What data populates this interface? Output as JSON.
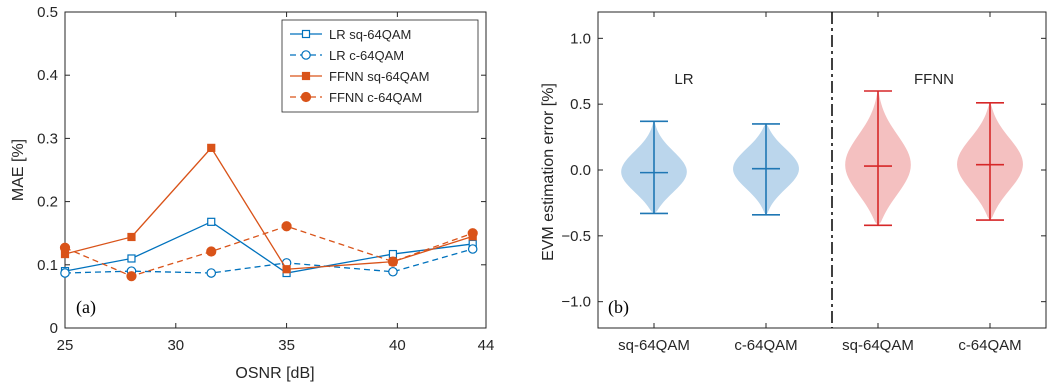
{
  "chart_data": [
    {
      "type": "line",
      "xlabel": "OSNR [dB]",
      "ylabel": "MAE [%]",
      "xlim": [
        25,
        44
      ],
      "ylim": [
        0,
        0.5
      ],
      "xticks": [
        "25",
        "30",
        "35",
        "40",
        "44"
      ],
      "yticks": [
        "0",
        "0.1",
        "0.2",
        "0.3",
        "0.4",
        "0.5"
      ],
      "annotation": "(a)",
      "legend_position": "top-right",
      "x": [
        25,
        28,
        31.6,
        35,
        39.8,
        43.4
      ],
      "series": [
        {
          "name": "LR sq-64QAM",
          "color": "#0072BD",
          "line": "solid",
          "marker": "square-open",
          "values": [
            0.09,
            0.11,
            0.168,
            0.087,
            0.117,
            0.133
          ]
        },
        {
          "name": "LR c-64QAM",
          "color": "#0072BD",
          "line": "dashed",
          "marker": "circle-open",
          "values": [
            0.087,
            0.09,
            0.087,
            0.103,
            0.089,
            0.125
          ]
        },
        {
          "name": "FFNN sq-64QAM",
          "color": "#D95319",
          "line": "solid",
          "marker": "square-filled",
          "values": [
            0.117,
            0.144,
            0.285,
            0.093,
            0.105,
            0.145
          ]
        },
        {
          "name": "FFNN c-64QAM",
          "color": "#D95319",
          "line": "dashed",
          "marker": "circle-filled",
          "values": [
            0.127,
            0.082,
            0.121,
            0.161,
            0.105,
            0.15
          ]
        }
      ]
    },
    {
      "type": "violin",
      "ylabel": "EVM estimation error [%]",
      "ylim": [
        -1.2,
        1.2
      ],
      "yticks": [
        "−1.0",
        "−0.5",
        "0.0",
        "0.5",
        "1.0"
      ],
      "annotation": "(b)",
      "group_labels": [
        "LR",
        "FFNN"
      ],
      "categories": [
        "sq-64QAM",
        "c-64QAM",
        "sq-64QAM",
        "c-64QAM"
      ],
      "series": [
        {
          "group": "LR",
          "category": "sq-64QAM",
          "color": "#1F77B4",
          "fill": "#BBD6EC",
          "min": -0.33,
          "max": 0.37,
          "mean": -0.02
        },
        {
          "group": "LR",
          "category": "c-64QAM",
          "color": "#1F77B4",
          "fill": "#BBD6EC",
          "min": -0.34,
          "max": 0.35,
          "mean": 0.01
        },
        {
          "group": "FFNN",
          "category": "sq-64QAM",
          "color": "#D62728",
          "fill": "#F4C0C0",
          "min": -0.42,
          "max": 0.6,
          "mean": 0.03
        },
        {
          "group": "FFNN",
          "category": "c-64QAM",
          "color": "#D62728",
          "fill": "#F4C0C0",
          "min": -0.38,
          "max": 0.51,
          "mean": 0.04
        }
      ]
    }
  ]
}
